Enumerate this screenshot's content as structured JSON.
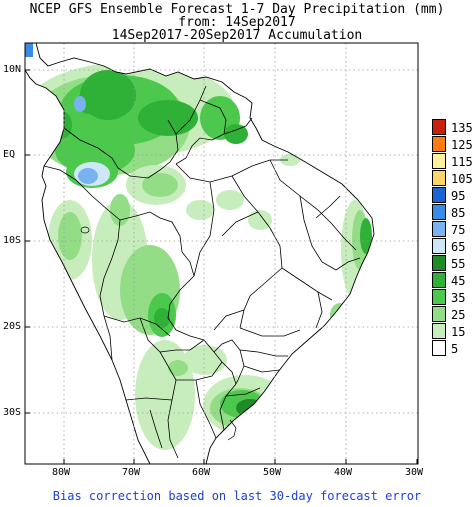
{
  "header": {
    "line1": "NCEP GFS Ensemble Forecast 1-7 Day Precipitation (mm)",
    "line2": "from: 14Sep2017",
    "line3": "14Sep2017-20Sep2017 Accumulation"
  },
  "map": {
    "lat_ticks": [
      "10N",
      "EQ",
      "10S",
      "20S",
      "30S"
    ],
    "lon_ticks": [
      "80W",
      "70W",
      "60W",
      "50W",
      "40W",
      "30W"
    ],
    "colors": {
      "ocean": "#ffffff",
      "land": "#ffffff",
      "border": "#000000",
      "grid": "#9a9a9a"
    }
  },
  "legend": {
    "items": [
      {
        "label": "135",
        "color": "#c8200e"
      },
      {
        "label": "125",
        "color": "#ff7a12"
      },
      {
        "label": "115",
        "color": "#fff0a0"
      },
      {
        "label": "105",
        "color": "#fbd46a"
      },
      {
        "label": "95",
        "color": "#1a64d6"
      },
      {
        "label": "85",
        "color": "#3a8ae6"
      },
      {
        "label": "75",
        "color": "#78b2ef"
      },
      {
        "label": "65",
        "color": "#cde7f7"
      },
      {
        "label": "55",
        "color": "#1f8a26"
      },
      {
        "label": "45",
        "color": "#2fb036"
      },
      {
        "label": "35",
        "color": "#4cc84d"
      },
      {
        "label": "25",
        "color": "#93dd87"
      },
      {
        "label": "15",
        "color": "#c8edbc"
      },
      {
        "label": "5",
        "color": "#ffffff"
      }
    ]
  },
  "footer": {
    "text": "Bias correction based on last 30-day forecast error"
  }
}
